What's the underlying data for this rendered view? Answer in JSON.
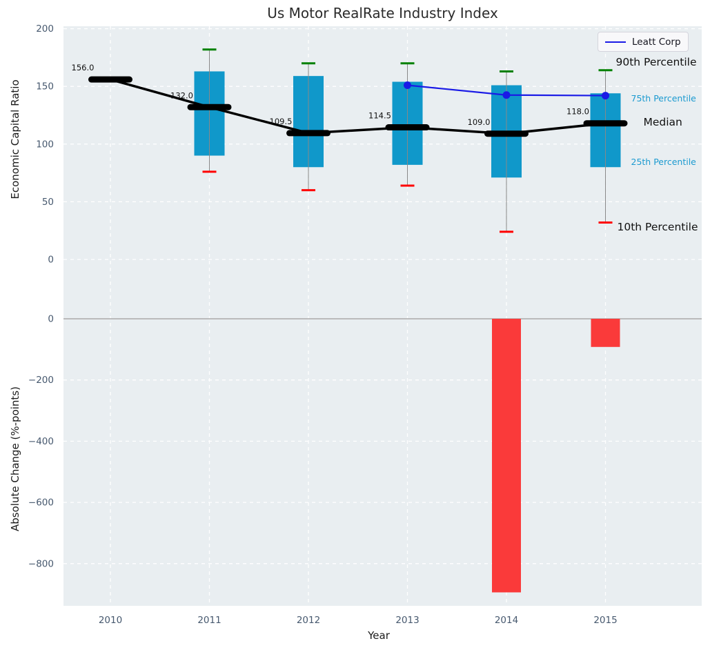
{
  "title": "Us Motor RealRate Industry Index",
  "legend": {
    "label": "Leatt Corp",
    "line_color": "#1a1ae6"
  },
  "chart_data": [
    {
      "type": "box",
      "panel": "top",
      "title": "Us Motor RealRate Industry Index",
      "ylabel": "Economic Capital Ratio",
      "categories": [
        "2010",
        "2011",
        "2012",
        "2013",
        "2014",
        "2015"
      ],
      "yticks": [
        200,
        150,
        100,
        50,
        0
      ],
      "ytick_labels": [
        "200",
        "150",
        "100",
        "50",
        "0"
      ],
      "ylim": [
        -40,
        202
      ],
      "grid": true,
      "legend_position": "upper right",
      "series": [
        {
          "name": "90th Percentile",
          "values": [
            null,
            182,
            170,
            170,
            163,
            164
          ]
        },
        {
          "name": "75th Percentile",
          "values": [
            null,
            163,
            159,
            154,
            151,
            144
          ]
        },
        {
          "name": "Median",
          "values": [
            156.0,
            132.0,
            109.5,
            114.5,
            109.0,
            118.0
          ]
        },
        {
          "name": "25th Percentile",
          "values": [
            null,
            90,
            80,
            82,
            71,
            80
          ]
        },
        {
          "name": "10th Percentile",
          "values": [
            null,
            76,
            60,
            64,
            24,
            32
          ]
        }
      ],
      "median_labels": [
        "156.0",
        "132.0",
        "109.5",
        "114.5",
        "109.0",
        "118.0"
      ],
      "company_line": {
        "name": "Leatt Corp",
        "years": [
          "2013",
          "2014",
          "2015"
        ],
        "values": [
          151,
          142.5,
          142
        ],
        "color": "#1a1ae6"
      },
      "annotations": [
        {
          "text": "90th Percentile",
          "value": 171,
          "dx": 15,
          "size": "large",
          "color": "#111111"
        },
        {
          "text": "75th Percentile",
          "value": 140,
          "dx": 37,
          "size": "small",
          "color": "#1b9ad0"
        },
        {
          "text": "Median",
          "value": 119,
          "dx": 55,
          "size": "large",
          "color": "#111111"
        },
        {
          "text": "25th Percentile",
          "value": 85,
          "dx": 37,
          "size": "small",
          "color": "#1b9ad0"
        },
        {
          "text": "10th Percentile",
          "value": 28,
          "dx": 17,
          "size": "large",
          "color": "#111111"
        }
      ],
      "colors": {
        "box": "#1098ca",
        "whisker": "#888888",
        "cap_top": "#008000",
        "cap_bottom": "#ff0000",
        "median": "#000000",
        "background": "#e9eef1",
        "grid": "#ffffff",
        "tick": "#46586e"
      }
    },
    {
      "type": "bar",
      "panel": "bottom",
      "xlabel": "Year",
      "ylabel": "Absolute Change (%-points)",
      "categories": [
        "2010",
        "2011",
        "2012",
        "2013",
        "2014",
        "2015"
      ],
      "values": [
        null,
        null,
        null,
        null,
        -894,
        -92
      ],
      "yticks": [
        0,
        -200,
        -400,
        -600,
        -800
      ],
      "ytick_labels": [
        "0",
        "−200",
        "−400",
        "−600",
        "−800"
      ],
      "ylim": [
        -938,
        43
      ],
      "bar_color": "#fa3a3a",
      "zero_line_color": "#b3b3b3"
    }
  ]
}
